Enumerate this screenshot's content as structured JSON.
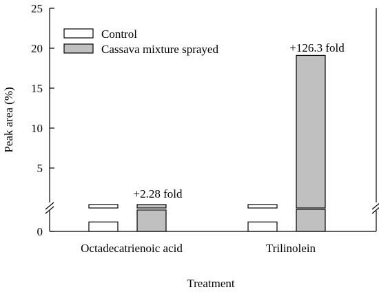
{
  "chart_data": {
    "type": "bar",
    "categories": [
      "Octadecatrienoic acid",
      "Trilinolein"
    ],
    "series": [
      {
        "name": "Control",
        "color": "#ffffff",
        "values": [
          0.15,
          0.15
        ]
      },
      {
        "name": "Cassava mixture sprayed",
        "color": "#c0c0c0",
        "values": [
          0.34,
          19.1
        ]
      }
    ],
    "xlabel": "Treatment",
    "ylabel": "Peak area (%)",
    "ylim": [
      0,
      25
    ],
    "y_ticks": [
      "0",
      "5",
      "10",
      "15",
      "20",
      "25"
    ],
    "axis_break": true,
    "annotations": [
      "+2.28 fold",
      "+126.3 fold"
    ],
    "legend_position": "top-left",
    "grid": false
  }
}
